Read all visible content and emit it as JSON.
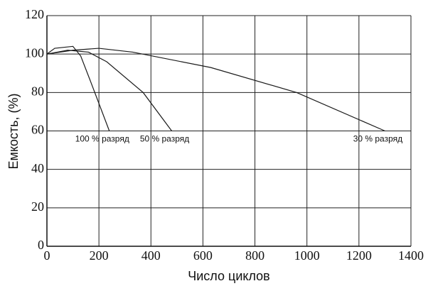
{
  "chart_data": {
    "type": "line",
    "x_label": "Число циклов",
    "y_label": "Емкость, (%)",
    "xlim": [
      0,
      1400
    ],
    "xticks": [
      0,
      200,
      400,
      600,
      800,
      1000,
      1200,
      1400
    ],
    "ylim": [
      0,
      120
    ],
    "yticks": [
      0,
      20,
      40,
      60,
      80,
      100,
      120
    ],
    "grid": true,
    "series": [
      {
        "name": "100 % разряд",
        "color": "#1a1a1a",
        "x": [
          0,
          30,
          100,
          130,
          170,
          240
        ],
        "values": [
          100,
          103,
          104,
          99,
          85,
          60
        ]
      },
      {
        "name": "50 % разряд",
        "color": "#1a1a1a",
        "x": [
          0,
          80,
          160,
          230,
          370,
          480
        ],
        "values": [
          100,
          102,
          101,
          96,
          80,
          60
        ]
      },
      {
        "name": "30 % разряд",
        "color": "#1a1a1a",
        "x": [
          0,
          100,
          200,
          330,
          630,
          960,
          1300
        ],
        "values": [
          100,
          102,
          103,
          101,
          93,
          80,
          60
        ]
      }
    ]
  }
}
